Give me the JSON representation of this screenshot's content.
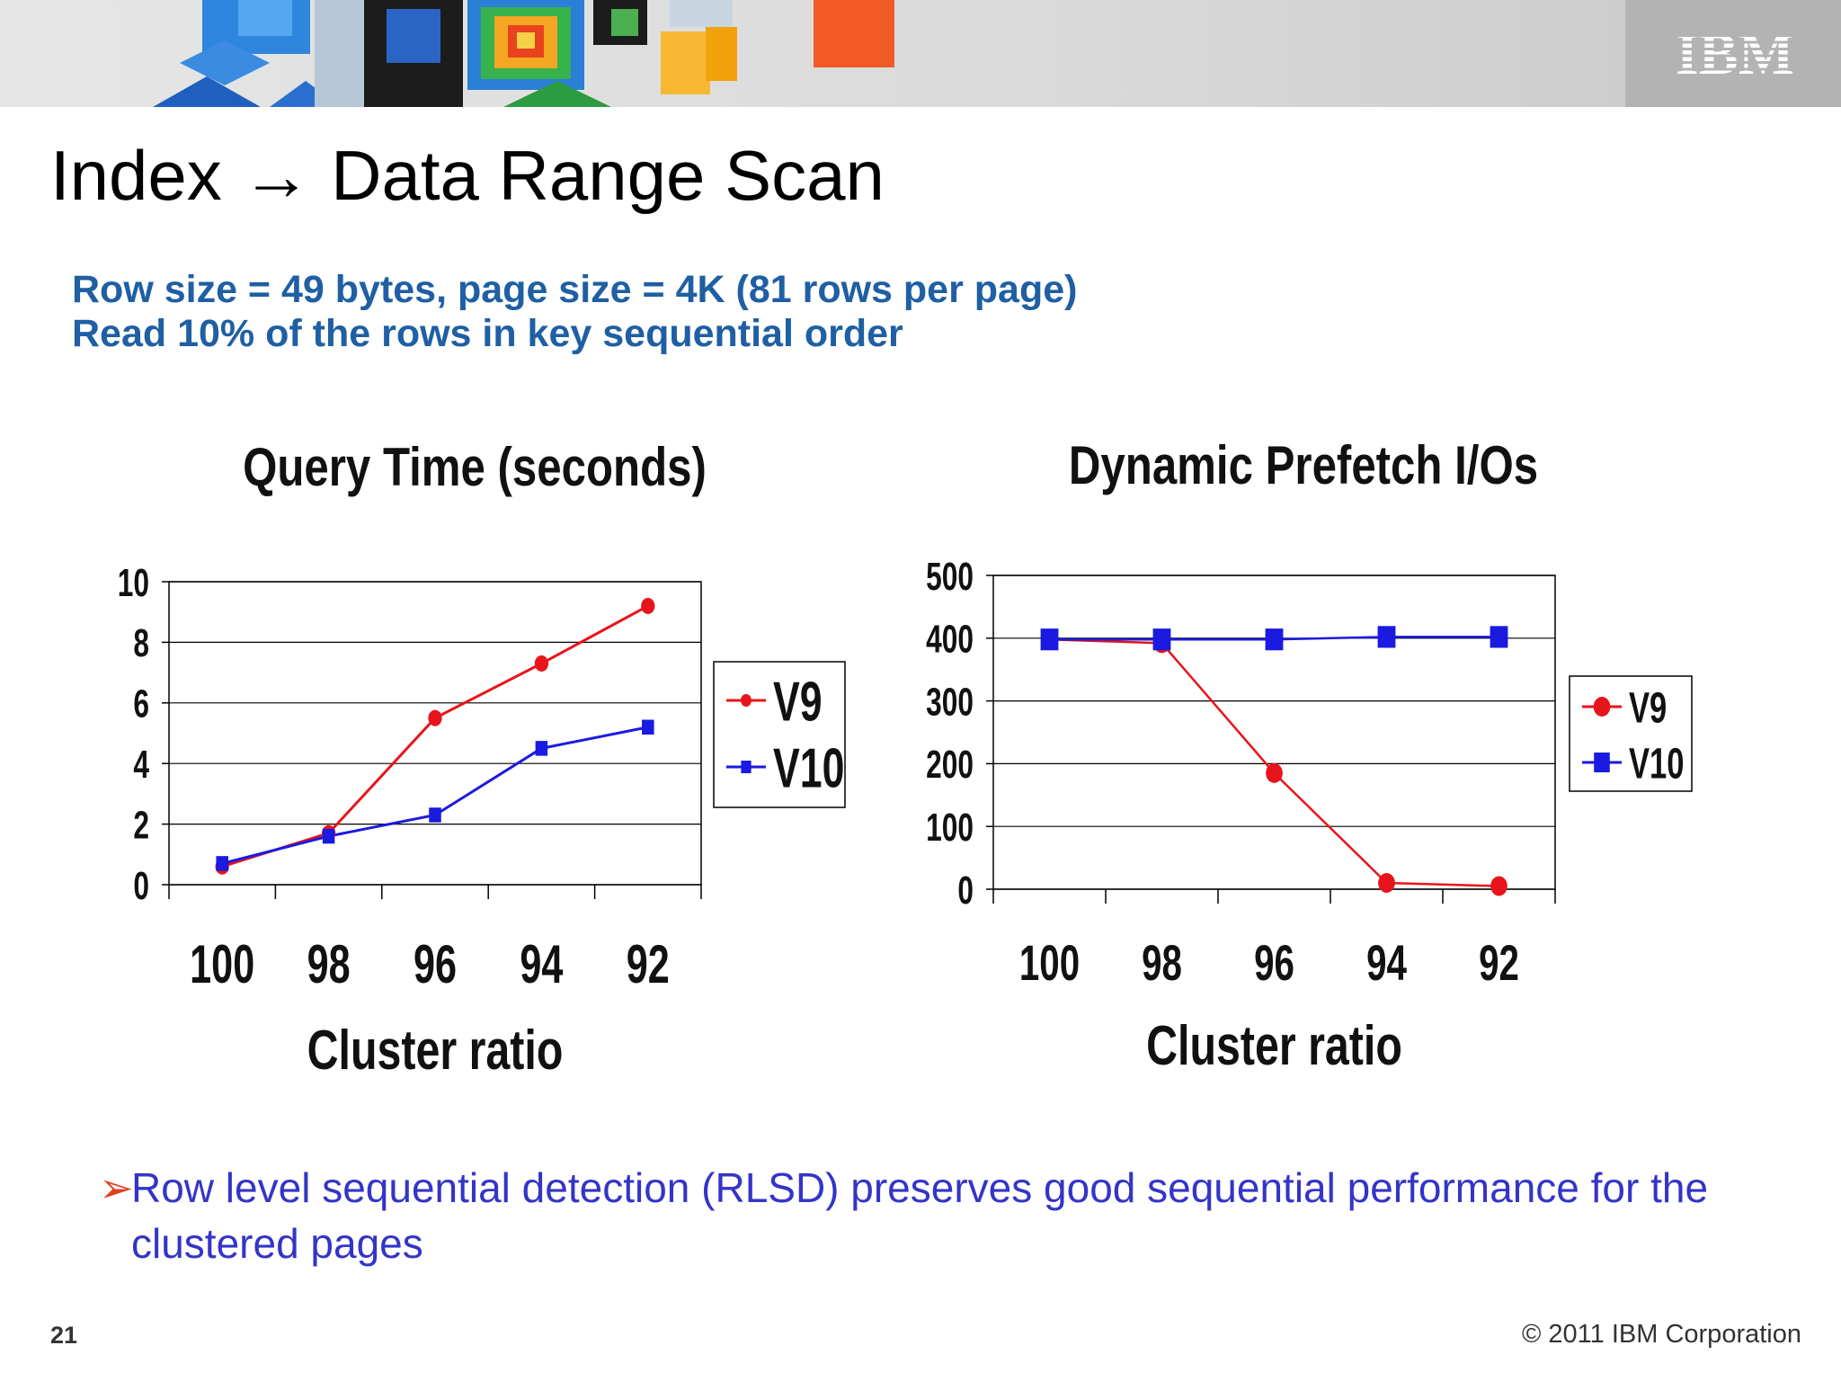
{
  "header": {
    "logo_text": "IBM",
    "art_icon": "isometric-cubes-art"
  },
  "slide": {
    "title": "Index → Data Range Scan",
    "subtitle_line1": "Row size = 49 bytes, page size = 4K (81 rows per page)",
    "subtitle_line2": "Read 10% of the rows in key sequential order",
    "bullet_marker": "➢",
    "bullet_text": "Row level sequential detection (RLSD) preserves good sequential performance for the clustered pages",
    "page_number": "21",
    "copyright": "© 2011 IBM Corporation"
  },
  "colors": {
    "v9": "#e8141b",
    "v10": "#1a1ae0",
    "subtitle": "#1f5fa3",
    "bullet": "#3434c8",
    "arrow": "#e04020"
  },
  "chart_data": [
    {
      "type": "line",
      "title": "Query Time (seconds)",
      "xlabel": "Cluster ratio",
      "ylabel": "",
      "categories": [
        "100",
        "98",
        "96",
        "94",
        "92"
      ],
      "ylim": [
        0,
        10
      ],
      "yticks": [
        "0",
        "2",
        "4",
        "6",
        "8",
        "10"
      ],
      "grid": true,
      "legend": "right",
      "series": [
        {
          "name": "V9",
          "marker": "circle",
          "values": [
            0.6,
            1.7,
            5.5,
            7.3,
            9.2
          ]
        },
        {
          "name": "V10",
          "marker": "square",
          "values": [
            0.7,
            1.6,
            2.3,
            4.5,
            5.2
          ]
        }
      ]
    },
    {
      "type": "line",
      "title": "Dynamic Prefetch I/Os",
      "xlabel": "Cluster ratio",
      "ylabel": "",
      "categories": [
        "100",
        "98",
        "96",
        "94",
        "92"
      ],
      "ylim": [
        0,
        500
      ],
      "yticks": [
        "0",
        "100",
        "200",
        "300",
        "400",
        "500"
      ],
      "grid": true,
      "legend": "right",
      "series": [
        {
          "name": "V9",
          "marker": "circle",
          "values": [
            398,
            392,
            185,
            10,
            5
          ]
        },
        {
          "name": "V10",
          "marker": "square",
          "values": [
            398,
            398,
            398,
            402,
            402
          ]
        }
      ]
    }
  ]
}
